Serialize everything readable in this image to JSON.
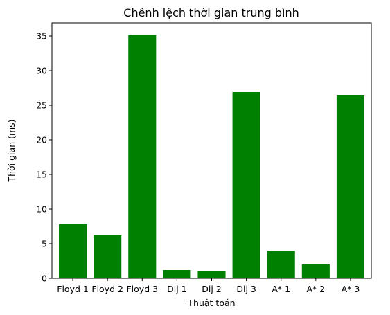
{
  "chart_data": {
    "type": "bar",
    "title": "Chênh lệch thời gian trung bình",
    "xlabel": "Thuật toán",
    "ylabel": "Thời gian (ms)",
    "categories": [
      "Floyd 1",
      "Floyd 2",
      "Floyd 3",
      "Dij 1",
      "Dij 2",
      "Dij 3",
      "A* 1",
      "A* 2",
      "A* 3"
    ],
    "values": [
      7.8,
      6.2,
      35.1,
      1.2,
      1.0,
      26.9,
      4.0,
      2.0,
      26.5
    ],
    "ylim": [
      0,
      36.9
    ],
    "yticks": [
      0,
      5,
      10,
      15,
      20,
      25,
      30,
      35
    ],
    "bar_color": "#008000",
    "grid": false,
    "legend": "none"
  }
}
